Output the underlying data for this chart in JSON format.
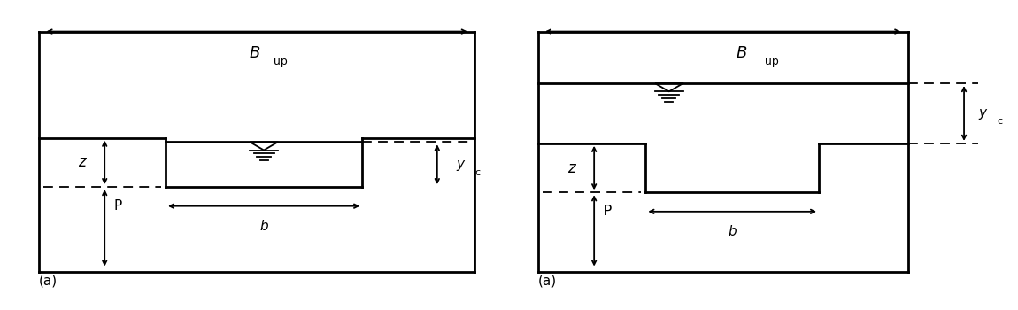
{
  "fig_width": 11.5,
  "fig_height": 3.5,
  "bg_color": "#ffffff",
  "line_color": "#000000",
  "lw": 2.0,
  "lw_thin": 1.3,
  "case1_label": "(a)",
  "case2_label": "(a)",
  "bup_label": "B",
  "bup_sub": "up",
  "z_label": "z",
  "p_label": "P",
  "b_label": "b",
  "yc_label": "y",
  "yc_sub": "c"
}
